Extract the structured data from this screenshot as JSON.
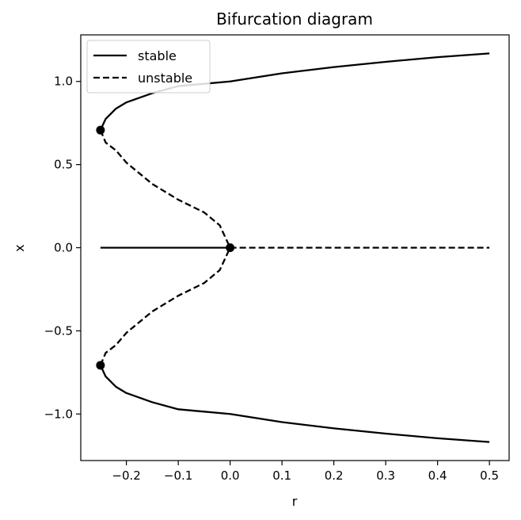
{
  "chart_data": {
    "type": "line",
    "title": "Bifurcation diagram",
    "xlabel": "r",
    "ylabel": "x",
    "xlim": [
      -0.288,
      0.538
    ],
    "ylim": [
      -1.28,
      1.28
    ],
    "xticks": [
      -0.2,
      -0.1,
      0.0,
      0.1,
      0.2,
      0.3,
      0.4,
      0.5
    ],
    "xtick_labels": [
      "−0.2",
      "−0.1",
      "0.0",
      "0.1",
      "0.2",
      "0.3",
      "0.4",
      "0.5"
    ],
    "yticks": [
      1.0,
      0.5,
      0.0,
      -0.5,
      -1.0
    ],
    "ytick_labels": [
      "1.0",
      "0.5",
      "0.0",
      "−0.5",
      "−1.0"
    ],
    "grid": false,
    "legend": {
      "position": "top-left",
      "entries": [
        {
          "label": "stable",
          "style": "solid"
        },
        {
          "label": "unstable",
          "style": "dashed"
        }
      ]
    },
    "line_color": "#000000",
    "series": [
      {
        "name": "stable",
        "style": "solid",
        "points": [
          [
            -0.25,
            0.7071
          ],
          [
            -0.24,
            0.7746
          ],
          [
            -0.22,
            0.8367
          ],
          [
            -0.2,
            0.874
          ],
          [
            -0.15,
            0.9293
          ],
          [
            -0.1,
            0.9717
          ],
          [
            0.0,
            1.0
          ],
          [
            0.1,
            1.0488
          ],
          [
            0.2,
            1.0863
          ],
          [
            0.3,
            1.118
          ],
          [
            0.4,
            1.1459
          ],
          [
            0.5,
            1.1687
          ]
        ]
      },
      {
        "name": "stable",
        "style": "solid",
        "points": [
          [
            -0.25,
            -0.7071
          ],
          [
            -0.24,
            -0.7746
          ],
          [
            -0.22,
            -0.8367
          ],
          [
            -0.2,
            -0.874
          ],
          [
            -0.15,
            -0.9293
          ],
          [
            -0.1,
            -0.9717
          ],
          [
            0.0,
            -1.0
          ],
          [
            0.1,
            -1.0488
          ],
          [
            0.2,
            -1.0863
          ],
          [
            0.3,
            -1.118
          ],
          [
            0.4,
            -1.1459
          ],
          [
            0.5,
            -1.1687
          ]
        ]
      },
      {
        "name": "stable",
        "style": "solid",
        "points": [
          [
            -0.25,
            0.0
          ],
          [
            0.0,
            0.0
          ]
        ]
      },
      {
        "name": "unstable",
        "style": "dashed",
        "points": [
          [
            0.0,
            0.0
          ],
          [
            0.5,
            0.0
          ]
        ]
      },
      {
        "name": "unstable",
        "style": "dashed",
        "points": [
          [
            -0.25,
            0.7071
          ],
          [
            -0.24,
            0.6325
          ],
          [
            -0.22,
            0.5848
          ],
          [
            -0.2,
            0.5117
          ],
          [
            -0.15,
            0.3832
          ],
          [
            -0.1,
            0.2887
          ],
          [
            -0.05,
            0.2123
          ],
          [
            -0.02,
            0.1348
          ],
          [
            0.0,
            0.0
          ]
        ]
      },
      {
        "name": "unstable",
        "style": "dashed",
        "points": [
          [
            -0.25,
            -0.7071
          ],
          [
            -0.24,
            -0.6325
          ],
          [
            -0.22,
            -0.5848
          ],
          [
            -0.2,
            -0.5117
          ],
          [
            -0.15,
            -0.3832
          ],
          [
            -0.1,
            -0.2887
          ],
          [
            -0.05,
            -0.2123
          ],
          [
            -0.02,
            -0.1348
          ],
          [
            0.0,
            0.0
          ]
        ]
      }
    ],
    "bifurcation_points": [
      [
        -0.25,
        0.7071
      ],
      [
        -0.25,
        -0.7071
      ],
      [
        0.0,
        0.0
      ]
    ]
  }
}
